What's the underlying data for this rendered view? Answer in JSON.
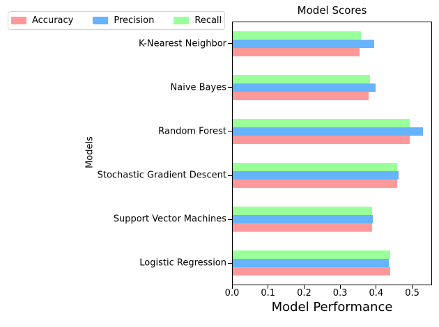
{
  "chart_data": {
    "type": "bar",
    "orientation": "horizontal",
    "title": "Model Scores",
    "xlabel": "Model Performance",
    "ylabel": "Models",
    "categories": [
      "K-Nearest Neighbor",
      "Naive Bayes",
      "Random Forest",
      "Stochastic Gradient Descent",
      "Support Vector Machines",
      "Logistic Regression"
    ],
    "series": [
      {
        "name": "Accuracy",
        "color": "#ff9999",
        "values": [
          0.352,
          0.378,
          0.491,
          0.457,
          0.386,
          0.438
        ]
      },
      {
        "name": "Precision",
        "color": "#66b3ff",
        "values": [
          0.393,
          0.397,
          0.528,
          0.461,
          0.389,
          0.433
        ]
      },
      {
        "name": "Recall",
        "color": "#99ff99",
        "values": [
          0.356,
          0.38,
          0.492,
          0.457,
          0.386,
          0.438
        ]
      }
    ],
    "xticks": [
      "0.0",
      "0.1",
      "0.2",
      "0.3",
      "0.4",
      "0.5"
    ],
    "xtick_values": [
      0.0,
      0.1,
      0.2,
      0.3,
      0.4,
      0.5
    ],
    "xlim": [
      0,
      0.555
    ],
    "grid": false,
    "legend_position": "upper-left",
    "colors": {
      "spine": "#000000",
      "background": "#ffffff",
      "legend_border": "#d2d2d2"
    }
  }
}
